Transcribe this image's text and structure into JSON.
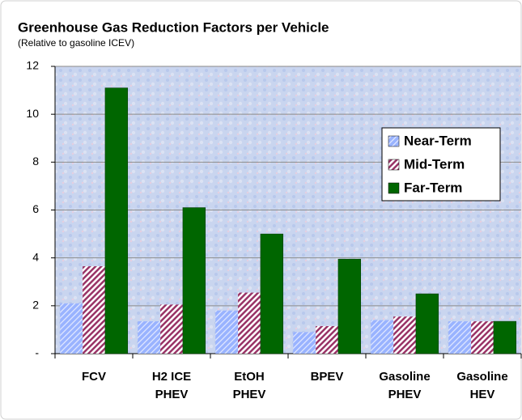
{
  "chart_data": {
    "type": "bar",
    "title": "Greenhouse Gas Reduction Factors per Vehicle",
    "subtitle": "(Relative to gasoline ICEV)",
    "categories": [
      "FCV",
      "H2 ICE PHEV",
      "EtOH PHEV",
      "BPEV",
      "Gasoline PHEV",
      "Gasoline HEV"
    ],
    "series": [
      {
        "name": "Near-Term",
        "color": "#99b3ff",
        "values": [
          2.1,
          1.35,
          1.8,
          0.9,
          1.4,
          1.35
        ]
      },
      {
        "name": "Mid-Term",
        "color": "#993366",
        "values": [
          3.65,
          2.05,
          2.55,
          1.15,
          1.55,
          1.35
        ]
      },
      {
        "name": "Far-Term",
        "color": "#006600",
        "values": [
          11.1,
          6.1,
          5.0,
          3.95,
          2.5,
          1.35
        ]
      }
    ],
    "ylim": [
      0,
      12
    ],
    "yticks": [
      {
        "value": 0,
        "label": "-"
      },
      2,
      4,
      6,
      8,
      10,
      12
    ],
    "grid": true,
    "legend": "upper right"
  }
}
